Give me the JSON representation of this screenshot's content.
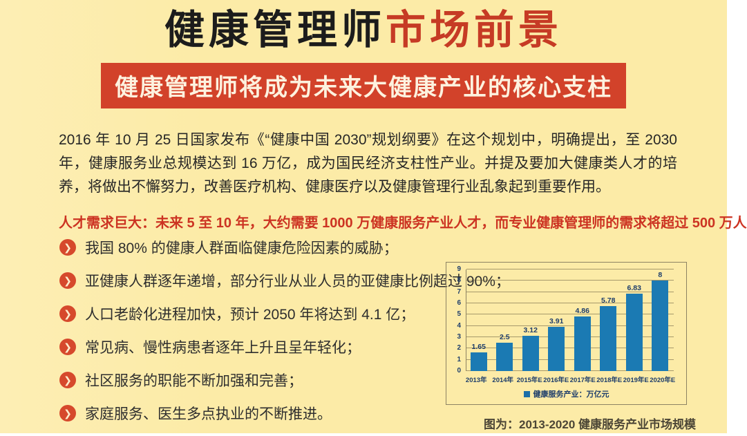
{
  "header": {
    "title_black": "健康管理师",
    "title_red": "市场前景",
    "banner": "健康管理师将成为未来大健康产业的核心支柱"
  },
  "intro": "2016 年 10 月 25 日国家发布《“健康中国 2030”规划纲要》在这个规划中，明确提出，至 2030 年，健康服务业总规模达到 16 万亿，成为国民经济支柱性产业。并提及要加大健康类人才的培养，将做出不懈努力，改善医疗机构、健康医疗以及健康管理行业乱象起到重要作用。",
  "highlight": "人才需求巨大：未来 5 至 10 年，大约需要 1000 万健康服务产业人才，而专业健康管理师的需求将超过 500 万人",
  "bullets": [
    "我国 80% 的健康人群面临健康危险因素的威胁；",
    "亚健康人群逐年递增，部分行业从业人员的亚健康比例超过 90%；",
    "人口老龄化进程加快，预计 2050 年将达到 4.1 亿；",
    "常见病、慢性病患者逐年上升且呈年轻化；",
    "社区服务的职能不断加强和完善；",
    "家庭服务、医生多点执业的不断推进。"
  ],
  "chart_data": {
    "type": "bar",
    "title": "",
    "categories": [
      "2013年",
      "2014年",
      "2015年E",
      "2016年E",
      "2017年E",
      "2018年E",
      "2019年E",
      "2020年E"
    ],
    "values": [
      1.65,
      2.5,
      3.12,
      3.91,
      4.86,
      5.78,
      6.83,
      8
    ],
    "value_labels": [
      "1.65",
      "2.5",
      "3.12",
      "3.91",
      "4.86",
      "5.78",
      "6.83",
      "8"
    ],
    "legend": "健康服务产业：万亿元",
    "legend_position": "bottom",
    "xlabel": "",
    "ylabel": "",
    "ylim": [
      0,
      9
    ],
    "yticks": [
      0,
      1,
      2,
      3,
      4,
      5,
      6,
      7,
      8,
      9
    ],
    "grid": true,
    "bar_color": "#1b7ab3",
    "unit": "万亿元"
  },
  "caption": "图为：2013-2020 健康服务产业市场规模",
  "icons": {
    "bullet_chevron": "❯"
  },
  "colors": {
    "background": "#fcebа7",
    "banner_red": "#d2422a",
    "title_red": "#c63b25",
    "highlight_red": "#cc3322",
    "bullet_red": "#d6492c",
    "bar_blue": "#1b7ab3",
    "chart_label_navy": "#1d3d6b"
  }
}
